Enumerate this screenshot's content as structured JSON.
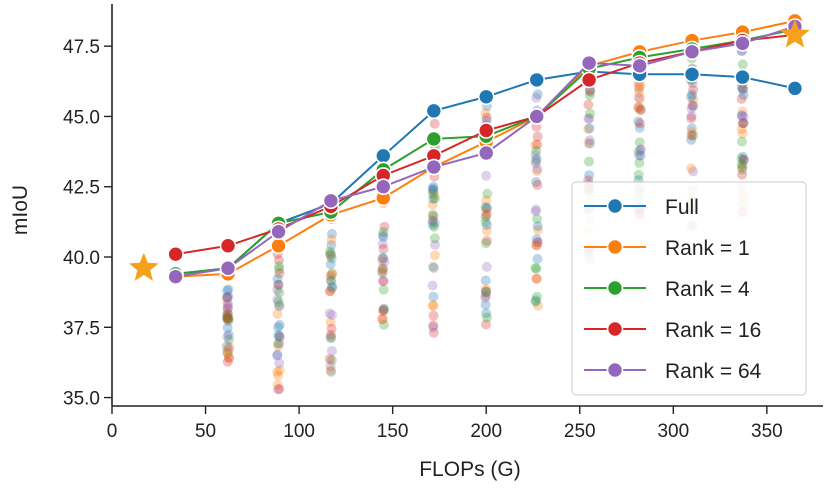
{
  "colors": {
    "Full": "#1f77b4",
    "Rank = 1": "#ff7f0e",
    "Rank = 4": "#2ca02c",
    "Rank = 16": "#d62728",
    "Rank = 64": "#9467bd",
    "star": "#f6a11b"
  },
  "chart_data": {
    "type": "line",
    "xlabel": "FLOPs (G)",
    "ylabel": "mIoU",
    "xlim": [
      0,
      380
    ],
    "ylim": [
      34.7,
      49.0
    ],
    "xticks": [
      0,
      50,
      100,
      150,
      200,
      250,
      300,
      350
    ],
    "yticks": [
      35.0,
      37.5,
      40.0,
      42.5,
      45.0,
      47.5
    ],
    "xtick_labels": [
      "0",
      "50",
      "100",
      "150",
      "200",
      "250",
      "300",
      "350"
    ],
    "ytick_labels": [
      "35.0",
      "37.5",
      "40.0",
      "42.5",
      "45.0",
      "47.5"
    ],
    "grid": false,
    "legend_position": "lower-right",
    "series": [
      {
        "name": "Full",
        "x": [
          34,
          62,
          89,
          117,
          145,
          172,
          200,
          227,
          255,
          282,
          310,
          337,
          365
        ],
        "y": [
          39.4,
          39.6,
          41.2,
          41.9,
          43.6,
          45.2,
          45.7,
          46.3,
          46.6,
          46.5,
          46.5,
          46.4,
          46.0
        ]
      },
      {
        "name": "Rank = 1",
        "x": [
          34,
          62,
          89,
          117,
          145,
          172,
          200,
          227,
          255,
          282,
          310,
          337,
          365
        ],
        "y": [
          39.3,
          39.4,
          40.4,
          41.5,
          42.1,
          43.2,
          44.1,
          45.0,
          46.8,
          47.3,
          47.7,
          48.0,
          48.4
        ]
      },
      {
        "name": "Rank = 4",
        "x": [
          34,
          62,
          89,
          117,
          145,
          172,
          200,
          227,
          255,
          282,
          310,
          337,
          365
        ],
        "y": [
          39.4,
          39.6,
          41.2,
          41.6,
          43.1,
          44.2,
          44.3,
          45.0,
          46.7,
          47.1,
          47.4,
          47.7,
          48.1
        ]
      },
      {
        "name": "Rank = 16",
        "x": [
          34,
          62,
          89,
          117,
          145,
          172,
          200,
          227,
          255,
          282,
          310,
          337,
          365
        ],
        "y": [
          40.1,
          40.4,
          41.0,
          41.8,
          42.9,
          43.6,
          44.5,
          45.0,
          46.3,
          46.9,
          47.3,
          47.7,
          47.9
        ]
      },
      {
        "name": "Rank = 64",
        "x": [
          34,
          62,
          89,
          117,
          145,
          172,
          200,
          227,
          255,
          282,
          310,
          337,
          365
        ],
        "y": [
          39.3,
          39.6,
          40.9,
          42.0,
          42.5,
          43.2,
          43.7,
          45.0,
          46.9,
          46.8,
          47.3,
          47.6,
          48.2
        ]
      }
    ],
    "stars": [
      {
        "x": 17,
        "y": 39.6
      },
      {
        "x": 365,
        "y": 47.9
      }
    ],
    "background_scatter": {
      "x_positions": [
        62,
        89,
        117,
        145,
        172,
        200,
        227,
        255,
        282,
        310,
        337
      ],
      "y_ranges": [
        [
          36.0,
          39.6
        ],
        [
          35.2,
          41.2
        ],
        [
          35.6,
          42.0
        ],
        [
          37.0,
          43.4
        ],
        [
          37.3,
          45.0
        ],
        [
          37.6,
          45.6
        ],
        [
          38.2,
          46.0
        ],
        [
          39.4,
          47.0
        ],
        [
          40.6,
          47.2
        ],
        [
          40.8,
          47.5
        ],
        [
          41.3,
          47.8
        ]
      ]
    }
  }
}
